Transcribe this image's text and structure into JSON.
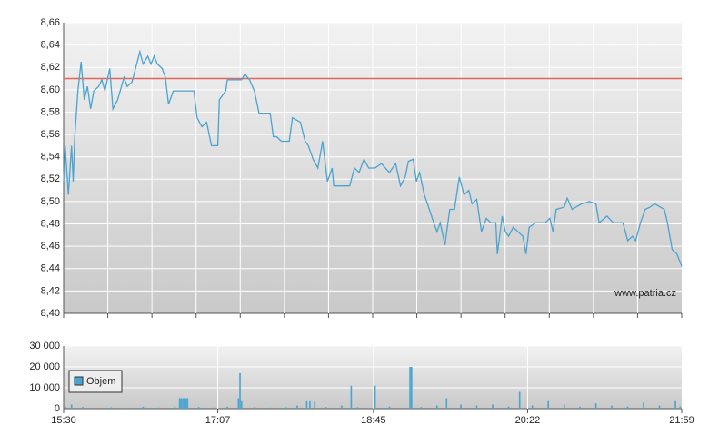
{
  "chart_data": [
    {
      "type": "line",
      "color": "#4aa3d0",
      "grid": true,
      "xlim": [
        "15:30",
        "21:59"
      ],
      "ylim": [
        8.4,
        8.66
      ],
      "yticks": [
        {
          "value": 8.4,
          "label": "8,40"
        },
        {
          "value": 8.42,
          "label": "8,42"
        },
        {
          "value": 8.44,
          "label": "8,44"
        },
        {
          "value": 8.46,
          "label": "8,46"
        },
        {
          "value": 8.48,
          "label": "8,48"
        },
        {
          "value": 8.5,
          "label": "8,50"
        },
        {
          "value": 8.52,
          "label": "8,52"
        },
        {
          "value": 8.54,
          "label": "8,54"
        },
        {
          "value": 8.56,
          "label": "8,56"
        },
        {
          "value": 8.58,
          "label": "8,58"
        },
        {
          "value": 8.6,
          "label": "8,60"
        },
        {
          "value": 8.62,
          "label": "8,62"
        },
        {
          "value": 8.64,
          "label": "8,64"
        },
        {
          "value": 8.66,
          "label": "8,66"
        }
      ],
      "reference_line": 8.61,
      "reference_color": "#e8635a",
      "watermark": "www.patria.cz",
      "x": [
        "15:30",
        "15:31",
        "15:33",
        "15:35",
        "15:36",
        "15:37",
        "15:39",
        "15:41",
        "15:43",
        "15:45",
        "15:47",
        "15:49",
        "15:52",
        "15:54",
        "15:56",
        "15:59",
        "16:01",
        "16:04",
        "16:08",
        "16:10",
        "16:13",
        "16:16",
        "16:18",
        "16:20",
        "16:23",
        "16:25",
        "16:27",
        "16:29",
        "16:32",
        "16:34",
        "16:36",
        "16:39",
        "16:44",
        "16:52",
        "16:54",
        "16:57",
        "17:00",
        "17:03",
        "17:07",
        "17:08",
        "17:12",
        "17:13",
        "17:22",
        "17:24",
        "17:27",
        "17:30",
        "17:33",
        "17:40",
        "17:42",
        "17:44",
        "17:47",
        "17:52",
        "17:54",
        "17:59",
        "18:02",
        "18:04",
        "18:07",
        "18:10",
        "18:13",
        "18:16",
        "18:19",
        "18:20",
        "18:30",
        "18:33",
        "18:36",
        "18:39",
        "18:42",
        "18:46",
        "18:50",
        "18:55",
        "18:59",
        "19:02",
        "19:05",
        "19:07",
        "19:10",
        "19:12",
        "19:14",
        "19:17",
        "19:19",
        "19:22",
        "19:25",
        "19:27",
        "19:30",
        "19:33",
        "19:36",
        "19:39",
        "19:42",
        "19:45",
        "19:47",
        "19:50",
        "19:53",
        "19:56",
        "19:59",
        "20:02",
        "20:03",
        "20:06",
        "20:08",
        "20:10",
        "20:13",
        "20:16",
        "20:19",
        "20:21",
        "20:23",
        "20:27",
        "20:33",
        "20:36",
        "20:38",
        "20:40",
        "20:45",
        "20:47",
        "20:50",
        "20:56",
        "21:01",
        "21:05",
        "21:07",
        "21:12",
        "21:16",
        "21:22",
        "21:25",
        "21:28",
        "21:30",
        "21:33",
        "21:36",
        "21:39",
        "21:42",
        "21:48",
        "21:50",
        "21:53",
        "21:56",
        "21:59"
      ],
      "values": [
        8.518,
        8.55,
        8.506,
        8.55,
        8.518,
        8.558,
        8.599,
        8.625,
        8.591,
        8.603,
        8.583,
        8.599,
        8.603,
        8.609,
        8.599,
        8.619,
        8.583,
        8.591,
        8.611,
        8.603,
        8.607,
        8.623,
        8.634,
        8.623,
        8.63,
        8.623,
        8.63,
        8.623,
        8.619,
        8.611,
        8.587,
        8.599,
        8.599,
        8.599,
        8.575,
        8.567,
        8.571,
        8.55,
        8.55,
        8.591,
        8.599,
        8.609,
        8.609,
        8.614,
        8.609,
        8.599,
        8.579,
        8.579,
        8.558,
        8.558,
        8.554,
        8.554,
        8.575,
        8.571,
        8.554,
        8.55,
        8.538,
        8.53,
        8.554,
        8.518,
        8.53,
        8.514,
        8.514,
        8.53,
        8.526,
        8.538,
        8.53,
        8.53,
        8.534,
        8.526,
        8.534,
        8.514,
        8.522,
        8.536,
        8.538,
        8.518,
        8.526,
        8.506,
        8.498,
        8.485,
        8.473,
        8.481,
        8.461,
        8.493,
        8.493,
        8.522,
        8.506,
        8.51,
        8.498,
        8.502,
        8.473,
        8.485,
        8.481,
        8.481,
        8.453,
        8.487,
        8.473,
        8.469,
        8.477,
        8.473,
        8.469,
        8.453,
        8.477,
        8.481,
        8.481,
        8.485,
        8.473,
        8.493,
        8.495,
        8.503,
        8.493,
        8.498,
        8.5,
        8.498,
        8.481,
        8.487,
        8.481,
        8.481,
        8.465,
        8.469,
        8.465,
        8.481,
        8.493,
        8.495,
        8.498,
        8.493,
        8.481,
        8.457,
        8.453,
        8.442
      ]
    },
    {
      "type": "bar",
      "grid": true,
      "legend": "upper left",
      "xlim": [
        "15:30",
        "21:59"
      ],
      "xticks": [
        "15:30",
        "17:07",
        "18:45",
        "20:22",
        "21:59"
      ],
      "ylim": [
        0,
        30000
      ],
      "yticks": [
        0,
        {
          "value": 10000,
          "label": "10 000"
        },
        {
          "value": 20000,
          "label": "20 000"
        },
        {
          "value": 30000,
          "label": "30 000"
        }
      ],
      "x": [
        "15:31",
        "15:35",
        "15:42",
        "15:50",
        "16:00",
        "16:10",
        "16:20",
        "16:30",
        "16:40",
        "16:43",
        "16:44",
        "16:45",
        "16:46",
        "16:47",
        "16:48",
        "16:55",
        "17:05",
        "17:13",
        "17:20",
        "17:21",
        "17:22",
        "17:30",
        "17:40",
        "17:50",
        "17:57",
        "18:03",
        "18:05",
        "18:08",
        "18:15",
        "18:25",
        "18:31",
        "18:35",
        "18:46",
        "18:55",
        "19:08",
        "19:09",
        "19:15",
        "19:25",
        "19:31",
        "19:40",
        "19:50",
        "20:00",
        "20:10",
        "20:17",
        "20:25",
        "20:35",
        "20:45",
        "20:55",
        "21:05",
        "21:15",
        "21:25",
        "21:35",
        "21:45",
        "21:55",
        "21:58"
      ],
      "series": [
        {
          "name": "Objem",
          "color": "#4aa3d0",
          "values": [
            1000,
            2000,
            800,
            500,
            600,
            400,
            900,
            500,
            1200,
            5000,
            5000,
            5000,
            5000,
            5000,
            5000,
            800,
            600,
            1000,
            5000,
            17000,
            4000,
            700,
            500,
            600,
            1500,
            4000,
            4000,
            4000,
            800,
            1500,
            11000,
            700,
            11000,
            1000,
            20000,
            20000,
            800,
            1500,
            5000,
            2000,
            1500,
            2000,
            1000,
            8000,
            1500,
            4000,
            2000,
            1000,
            2500,
            1500,
            1000,
            3000,
            1500,
            4000,
            1000
          ]
        }
      ]
    }
  ]
}
